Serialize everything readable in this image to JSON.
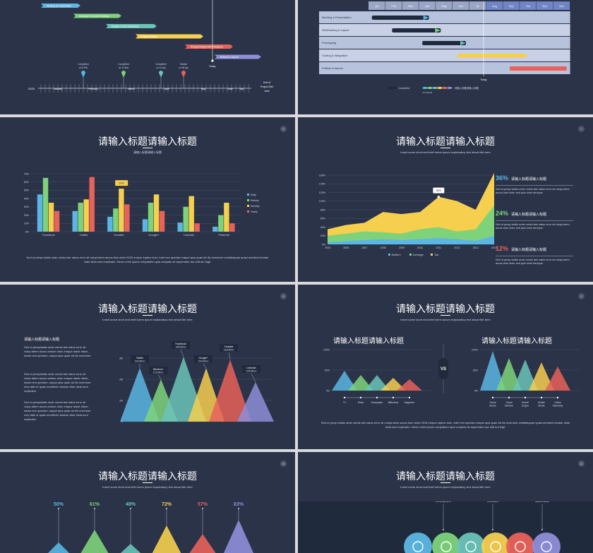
{
  "slides": {
    "s1": {
      "tasks": [
        "Meeting & Presentation",
        "Concept & Content Strategy",
        "Design & Wire Interfacing",
        "Project Testing",
        "Programming (PHP & MySQL)",
        "Rollout & Launch"
      ],
      "today": "Today",
      "year": "2015",
      "months": [
        "January",
        "February",
        "March",
        "April",
        "May",
        "June",
        "July"
      ],
      "milestones": [
        {
          "label": "Completed",
          "date": "on 8 Feb"
        },
        {
          "label": "Completed",
          "date": "on 14 Mar"
        },
        {
          "label": "Completed",
          "date": "on 14 Apr"
        },
        {
          "label": "Started",
          "date": "on 06 Apr"
        }
      ],
      "end_label": "End of Project 30th June"
    },
    "s2": {
      "months": [
        "Jan",
        "Feb",
        "Mar",
        "Apr",
        "May",
        "Jun",
        "Jul",
        "Aug",
        "Sep",
        "Oct",
        "Nov",
        "Dec"
      ],
      "rows": [
        "Meeting & Presentation",
        "Wireframing & Layout",
        "Prototyping",
        "Coding & Integration",
        "Publish & launch"
      ],
      "today": "Today",
      "legend_completed": "Completed",
      "legend_wip": "请输入标题请输入标题",
      "legend_wip_sub": "not started"
    },
    "s3": {
      "num": "6",
      "title": "请输入标题请输入标题",
      "subtitle": "请输入标题请输入标题",
      "legend": [
        "Daily",
        "Weekly",
        "Monthly",
        "Yearly"
      ],
      "body": "Sed ut persp iciatis unde omnis iste natus error sit volupt atem accus tium dolor 2015 empue luption tium, totel rem aperiam eaque ipsa quae ab illo inventore veritatisquae quasi architect beatae vitae dicta sunt explicabo. Nemo enim ipsam voluptatem quia voluptas sit aspernatur aut odit aut fugit."
    },
    "s4": {
      "num": "7",
      "title": "请输入标题请输入标题",
      "subtitle": "Insert some short and brief lorem ipsum explanatory text about title here",
      "callout": "36%",
      "stats": [
        {
          "pct": "36%",
          "label": "请输入标题请输入标题",
          "text": "Sed ut persp iciatis unde omnis iste natus error sit volupt atem accus tium dolor sed quis enim denique.",
          "color": "#5bb6e3"
        },
        {
          "pct": "24%",
          "label": "请输入标题请输入标题",
          "text": "Sed ut persp iciatis unde omnis iste natus error sit volupt atem accus tium dolor sed quis enim denique.",
          "color": "#7ed37a"
        },
        {
          "pct": "12%",
          "label": "请输入标题请输入标题",
          "text": "Sed ut persp iciatis unde omnis iste natus error sit volupt atem accus tium dolor sed quis enim denique.",
          "color": "#e8625a"
        }
      ],
      "legend": [
        "Bottom",
        "Average",
        "Top"
      ]
    },
    "s5": {
      "num": "8",
      "title": "请输入标题请输入标题",
      "subtitle": "Insert some short and brief lorem ipsum explanatory text about title here",
      "heading": "请输入标题请输入标题",
      "paras": [
        "Sed ut perspiciatis unde omnis iste natus error sit volup tatem accus antium dolor emque laude ntium, totam rem aperiam, eaque ipsa quae ab illo inventore.",
        "Sed ut perspiciatis unde omnis iste natus error sit volup tatem accus antium dolor emque laude ntium, totam rem aperiam, eaque ipsa quae ab illo inventore very tatis et quasi architecto beatae vitae dicta sunt explicabo.",
        "Sed ut perspiciatis unde omnis iste natus error sit volup tatem accus antium dolor emque laude ntium, totam rem aperiam, eaque ipsa quae ab illo inventore very tatis et quasi architecto beatae vitae dicta sunt explicabo."
      ],
      "peaks": [
        {
          "name": "Twitter",
          "val": "315million"
        },
        {
          "name": "Behance",
          "val": "212million"
        },
        {
          "name": "Facebook",
          "val": "346million"
        },
        {
          "name": "Google+",
          "val": "310million"
        },
        {
          "name": "Youtube",
          "val": "318million"
        },
        {
          "name": "LinkedIn",
          "val": "225million"
        }
      ],
      "yticks": [
        "3M",
        "2M",
        "1M",
        "0"
      ]
    },
    "s6": {
      "num": "9",
      "title": "请输入标题请输入标题",
      "subtitle": "Insert some short and brief lorem ipsum explanatory text about title here",
      "left_heading": "请输入标题请输入标题",
      "right_heading": "请输入标题请输入标题",
      "vs": "VS",
      "left_labels": [
        "TV",
        "Radio",
        "Newspaper",
        "Billboards",
        "Magazine"
      ],
      "right_labels": [
        "Social Media",
        "Social Network",
        "Search Engine",
        "Mobile Media",
        "Online Marketing"
      ],
      "yticks": [
        "100%",
        "50%",
        "0%"
      ],
      "body": "Sed ut persp iciatis unde omnis iste natus error sit volupt atem accus tium dolor 2015 empue luption tium, totel rem aperiam eaque ipsa quae ab illo inventore veritatisquae quasi architect beatae vitae dicta sunt explicabo. Nemo enim ipsam voluptatem quia voluptas sit aspernatur aut odit aut fugit."
    },
    "s7": {
      "num": "10",
      "title": "请输入标题请输入标题",
      "subtitle": "Insert some short and brief lorem ipsum explanatory text about title here",
      "pcts": [
        "50%",
        "61%",
        "48%",
        "72%",
        "57%",
        "83%"
      ]
    },
    "s8": {
      "num": "11",
      "title": "请输入标题请输入标题",
      "subtitle": "Insert some short and brief lorem ipsum explanatory text about title here",
      "stages": [
        "Strategy Development",
        "Implementation & Execution",
        "Control & Maintenance"
      ]
    }
  },
  "colors": {
    "bg": "#2b3348",
    "blue": "#5bb6e3",
    "green": "#7ed37a",
    "teal": "#6bc3b8",
    "yellow": "#f6cf4f",
    "red": "#e8625a",
    "purple": "#8e8ed8",
    "navy": "#1f2a3c"
  },
  "chart_data": [
    {
      "type": "bar",
      "categories": [
        "Facebook",
        "Twitter",
        "Youtube",
        "Google+",
        "Linkedin",
        "Pinterest"
      ],
      "ylim": [
        0,
        70
      ],
      "ylabel": "",
      "yticks": [
        "0%",
        "10%",
        "20%",
        "30%",
        "40%",
        "50%",
        "60%",
        "70%"
      ],
      "callout": "52%",
      "series": [
        {
          "name": "Daily",
          "values": [
            45,
            25,
            18,
            15,
            11,
            6
          ]
        },
        {
          "name": "Weekly",
          "values": [
            65,
            35,
            28,
            35,
            30,
            20
          ]
        },
        {
          "name": "Monthly",
          "values": [
            35,
            39,
            52,
            45,
            43,
            35
          ]
        },
        {
          "name": "Yearly",
          "values": [
            25,
            66,
            33,
            25,
            10,
            10
          ]
        }
      ]
    },
    {
      "type": "area",
      "x": [
        "2005",
        "2006",
        "2007",
        "2008",
        "2009",
        "2010",
        "2011",
        "2012",
        "2013",
        "2014"
      ],
      "ylim": [
        0,
        160
      ],
      "yticks": [
        "0%",
        "20%",
        "40%",
        "60%",
        "80%",
        "100%",
        "120%",
        "140%",
        "160%"
      ],
      "series": [
        {
          "name": "Bottom",
          "values": [
            5,
            8,
            10,
            12,
            10,
            12,
            15,
            12,
            8,
            20
          ]
        },
        {
          "name": "Average",
          "values": [
            20,
            25,
            30,
            28,
            25,
            35,
            40,
            30,
            35,
            90
          ]
        },
        {
          "name": "Top",
          "values": [
            35,
            45,
            50,
            75,
            70,
            75,
            110,
            100,
            80,
            165
          ]
        }
      ]
    }
  ]
}
